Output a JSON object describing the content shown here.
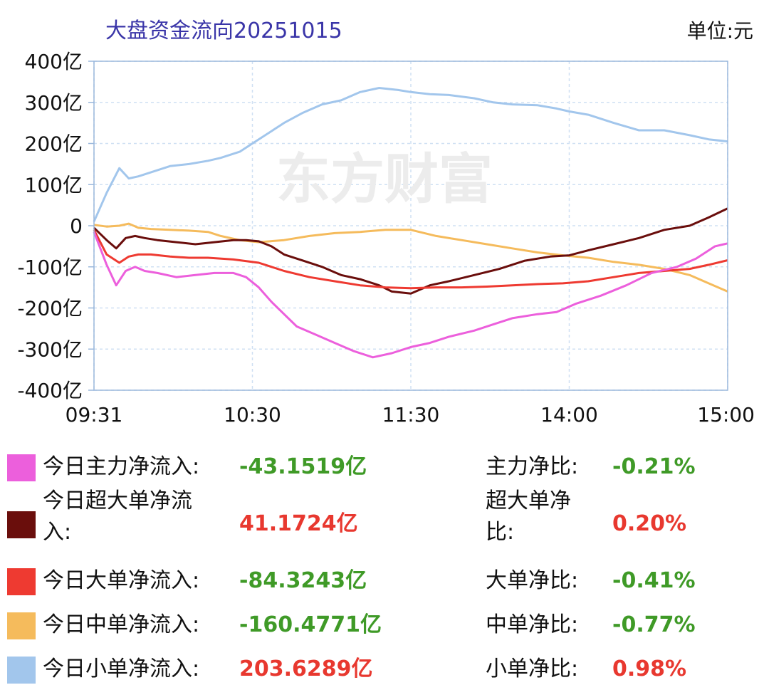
{
  "header": {
    "title": "大盘资金流向20251015",
    "unit": "单位:元"
  },
  "watermark": "东方财富",
  "chart_data": {
    "type": "line",
    "title": "大盘资金流向20251015",
    "ylim": [
      -400,
      400
    ],
    "y_ticks": [
      400,
      300,
      200,
      100,
      0,
      -100,
      -200,
      -300,
      -400
    ],
    "y_tick_labels": [
      "400亿",
      "300亿",
      "200亿",
      "100亿",
      "0",
      "-100亿",
      "-200亿",
      "-300亿",
      "-400亿"
    ],
    "x_tick_labels": [
      "09:31",
      "10:30",
      "11:30",
      "14:00",
      "15:00"
    ],
    "x_tick_positions": [
      0,
      0.25,
      0.5,
      0.75,
      1.0
    ],
    "grid": true,
    "series": [
      {
        "name": "小单",
        "color": "#a2c6ec",
        "x": [
          0,
          0.02,
          0.04,
          0.055,
          0.07,
          0.09,
          0.12,
          0.15,
          0.18,
          0.2,
          0.23,
          0.25,
          0.28,
          0.3,
          0.33,
          0.36,
          0.39,
          0.42,
          0.45,
          0.48,
          0.5,
          0.53,
          0.56,
          0.6,
          0.63,
          0.66,
          0.7,
          0.73,
          0.75,
          0.78,
          0.82,
          0.86,
          0.9,
          0.94,
          0.97,
          1.0
        ],
        "y": [
          10,
          80,
          140,
          115,
          120,
          130,
          145,
          150,
          158,
          165,
          180,
          200,
          230,
          250,
          275,
          295,
          305,
          325,
          335,
          330,
          325,
          320,
          318,
          310,
          300,
          295,
          293,
          285,
          278,
          270,
          250,
          232,
          232,
          220,
          210,
          205
        ]
      },
      {
        "name": "中单",
        "color": "#f5bb5c",
        "x": [
          0,
          0.02,
          0.04,
          0.055,
          0.07,
          0.09,
          0.12,
          0.15,
          0.18,
          0.2,
          0.23,
          0.26,
          0.3,
          0.34,
          0.38,
          0.42,
          0.46,
          0.5,
          0.54,
          0.58,
          0.62,
          0.66,
          0.7,
          0.74,
          0.78,
          0.82,
          0.86,
          0.9,
          0.94,
          0.97,
          1.0
        ],
        "y": [
          2,
          -2,
          0,
          5,
          -5,
          -8,
          -10,
          -12,
          -15,
          -25,
          -35,
          -40,
          -35,
          -25,
          -18,
          -15,
          -10,
          -10,
          -25,
          -35,
          -45,
          -55,
          -65,
          -72,
          -78,
          -88,
          -95,
          -105,
          -120,
          -140,
          -160
        ]
      },
      {
        "name": "超大单",
        "color": "#6a0e0c",
        "x": [
          0,
          0.02,
          0.035,
          0.05,
          0.065,
          0.08,
          0.1,
          0.13,
          0.16,
          0.19,
          0.22,
          0.24,
          0.26,
          0.28,
          0.3,
          0.33,
          0.36,
          0.39,
          0.42,
          0.45,
          0.47,
          0.5,
          0.53,
          0.56,
          0.6,
          0.64,
          0.68,
          0.72,
          0.75,
          0.78,
          0.82,
          0.86,
          0.9,
          0.94,
          0.97,
          1.0
        ],
        "y": [
          -5,
          -35,
          -55,
          -30,
          -25,
          -30,
          -35,
          -40,
          -45,
          -40,
          -35,
          -35,
          -38,
          -50,
          -70,
          -85,
          -100,
          -120,
          -130,
          -145,
          -160,
          -165,
          -145,
          -135,
          -120,
          -105,
          -85,
          -75,
          -72,
          -60,
          -45,
          -30,
          -10,
          0,
          20,
          42
        ]
      },
      {
        "name": "大单",
        "color": "#ee3a31",
        "x": [
          0,
          0.02,
          0.04,
          0.055,
          0.07,
          0.09,
          0.12,
          0.15,
          0.18,
          0.22,
          0.26,
          0.3,
          0.34,
          0.38,
          0.42,
          0.46,
          0.5,
          0.54,
          0.58,
          0.62,
          0.66,
          0.7,
          0.74,
          0.78,
          0.82,
          0.86,
          0.9,
          0.94,
          0.97,
          1.0
        ],
        "y": [
          -10,
          -70,
          -90,
          -75,
          -70,
          -70,
          -75,
          -78,
          -78,
          -82,
          -90,
          -110,
          -125,
          -135,
          -145,
          -150,
          -152,
          -150,
          -150,
          -148,
          -145,
          -142,
          -140,
          -135,
          -125,
          -115,
          -110,
          -105,
          -95,
          -84
        ]
      },
      {
        "name": "主力",
        "color": "#ec5fdc",
        "x": [
          0,
          0.02,
          0.035,
          0.05,
          0.065,
          0.08,
          0.1,
          0.13,
          0.16,
          0.19,
          0.22,
          0.24,
          0.26,
          0.28,
          0.3,
          0.32,
          0.35,
          0.38,
          0.41,
          0.44,
          0.47,
          0.5,
          0.53,
          0.56,
          0.6,
          0.63,
          0.66,
          0.7,
          0.73,
          0.76,
          0.8,
          0.84,
          0.88,
          0.92,
          0.95,
          0.98,
          1.0
        ],
        "y": [
          -15,
          -95,
          -145,
          -110,
          -100,
          -110,
          -115,
          -125,
          -120,
          -115,
          -115,
          -125,
          -150,
          -185,
          -215,
          -245,
          -265,
          -285,
          -305,
          -320,
          -310,
          -295,
          -285,
          -270,
          -255,
          -240,
          -225,
          -215,
          -210,
          -190,
          -170,
          -145,
          -115,
          -100,
          -80,
          -50,
          -43
        ]
      }
    ]
  },
  "legend": [
    {
      "swatch": "#ec5fdc",
      "label": "今日主力净流入:",
      "value": "-43.1519亿",
      "ratio_label": "主力净比:",
      "ratio": "-0.21%",
      "sign": "neg"
    },
    {
      "swatch": "#6a0e0c",
      "label": "今日超大单净流入:",
      "value": "41.1724亿",
      "ratio_label": "超大单净比:",
      "ratio": "0.20%",
      "sign": "pos"
    },
    {
      "swatch": "#ee3a31",
      "label": "今日大单净流入:",
      "value": "-84.3243亿",
      "ratio_label": "大单净比:",
      "ratio": "-0.41%",
      "sign": "neg"
    },
    {
      "swatch": "#f5bb5c",
      "label": "今日中单净流入:",
      "value": "-160.4771亿",
      "ratio_label": "中单净比:",
      "ratio": "-0.77%",
      "sign": "neg"
    },
    {
      "swatch": "#a2c6ec",
      "label": "今日小单净流入:",
      "value": "203.6289亿",
      "ratio_label": "小单净比:",
      "ratio": "0.98%",
      "sign": "pos"
    }
  ]
}
